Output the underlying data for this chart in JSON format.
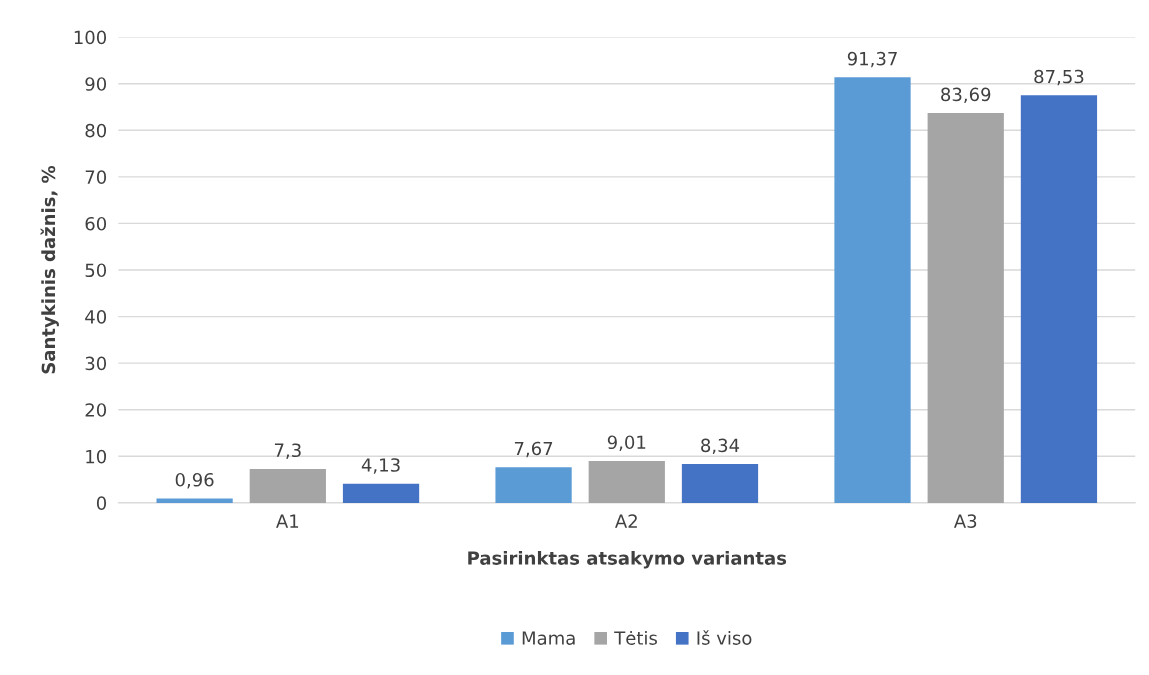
{
  "chart_data": {
    "type": "bar",
    "xlabel": "Pasirinktas atsakymo variantas",
    "ylabel": "Santykinis dažnis, %",
    "categories": [
      "A1",
      "A2",
      "A3"
    ],
    "series": [
      {
        "name": "Mama",
        "color": "#5b9bd5",
        "values": [
          0.96,
          7.67,
          91.37
        ],
        "value_labels": [
          "0,96",
          "7,67",
          "91,37"
        ]
      },
      {
        "name": "Tėtis",
        "color": "#a5a5a5",
        "values": [
          7.3,
          9.01,
          83.69
        ],
        "value_labels": [
          "7,3",
          "9,01",
          "83,69"
        ]
      },
      {
        "name": "Iš viso",
        "color": "#4472c4",
        "values": [
          4.13,
          8.34,
          87.53
        ],
        "value_labels": [
          "4,13",
          "8,34",
          "87,53"
        ]
      }
    ],
    "ylim": [
      0,
      100
    ],
    "yticks": [
      0,
      10,
      20,
      30,
      40,
      50,
      60,
      70,
      80,
      90,
      100
    ],
    "grid": "y",
    "legend": "bottom"
  }
}
